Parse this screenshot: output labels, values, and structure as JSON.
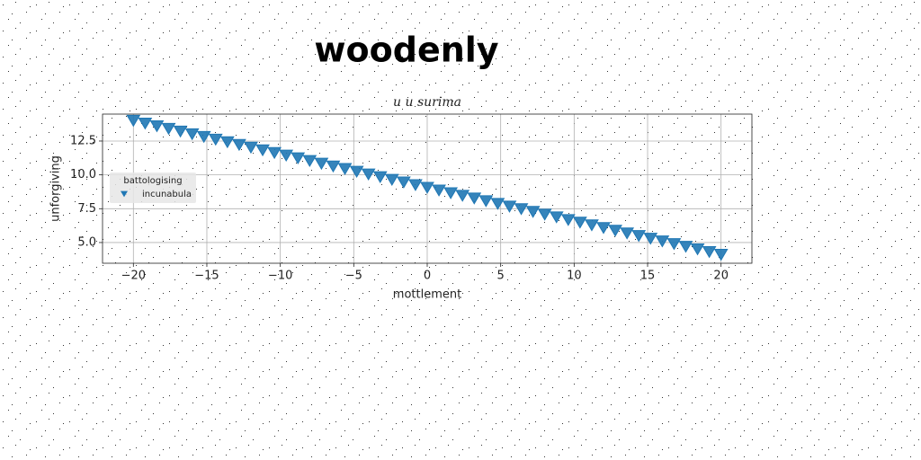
{
  "chart_data": {
    "type": "scatter",
    "title": "woodenly",
    "subtitle": "u u surima",
    "xlabel": "mottlement",
    "ylabel": "unforgiving",
    "legend_title": "battologising",
    "legend_position": "center left",
    "grid": true,
    "marker": "triangle-down",
    "xlim": [
      -22.1,
      22.1
    ],
    "ylim": [
      3.47,
      14.49
    ],
    "xticks": [
      {
        "value": -20,
        "label": "−20"
      },
      {
        "value": -15,
        "label": "−15"
      },
      {
        "value": -10,
        "label": "−10"
      },
      {
        "value": -5,
        "label": "−5"
      },
      0,
      5,
      10,
      15,
      20
    ],
    "yticks": [
      {
        "value": 5,
        "label": "5.0"
      },
      {
        "value": 7.5,
        "label": "7.5"
      },
      {
        "value": 10,
        "label": "10.0"
      },
      {
        "value": 12.5,
        "label": "12.5"
      }
    ],
    "series": [
      {
        "name": "incunabula",
        "color": "#1f77b4",
        "x": [
          -20,
          -19.2,
          -18.4,
          -17.6,
          -16.8,
          -16,
          -15.2,
          -14.4,
          -13.6,
          -12.8,
          -12,
          -11.2,
          -10.4,
          -9.6,
          -8.8,
          -8,
          -7.2,
          -6.4,
          -5.6,
          -4.8,
          -4,
          -3.2,
          -2.4,
          -1.6,
          -0.8,
          0,
          0.8,
          1.6,
          2.4,
          3.2,
          4,
          4.8,
          5.6,
          6.4,
          7.2,
          8,
          8.8,
          9.6,
          10.4,
          11.2,
          12,
          12.8,
          13.6,
          14.4,
          15.2,
          16,
          16.8,
          17.6,
          18.4,
          19.2,
          20
        ],
        "values": [
          14.0,
          13.8,
          13.6,
          13.41,
          13.21,
          13.01,
          12.81,
          12.61,
          12.42,
          12.22,
          12.02,
          11.82,
          11.62,
          11.43,
          11.23,
          11.03,
          10.83,
          10.63,
          10.44,
          10.24,
          10.04,
          9.84,
          9.64,
          9.45,
          9.25,
          9.05,
          8.85,
          8.65,
          8.46,
          8.26,
          8.06,
          7.86,
          7.66,
          7.47,
          7.27,
          7.07,
          6.87,
          6.67,
          6.48,
          6.28,
          6.08,
          5.88,
          5.68,
          5.49,
          5.29,
          5.09,
          4.89,
          4.69,
          4.5,
          4.3,
          4.1
        ]
      }
    ]
  }
}
